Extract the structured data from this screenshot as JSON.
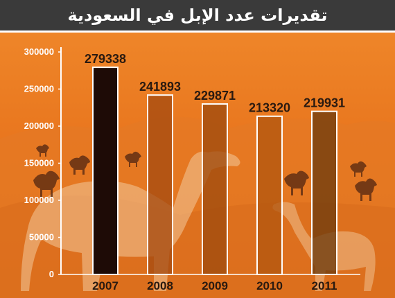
{
  "title": "تقديرات عدد الإبل في السعودية",
  "colors": {
    "background": "#e8741e",
    "title_bar": "#3a3a3a",
    "bar_fills": [
      "#1e0b06",
      "#a34a10",
      "#9c4a0e",
      "#b0560f",
      "#6a3a0e"
    ],
    "bar_stroke": "#ffffff"
  },
  "chart_data": {
    "type": "bar",
    "categories": [
      "2007",
      "2008",
      "2009",
      "2010",
      "2011"
    ],
    "values": [
      279338,
      241893,
      229871,
      213320,
      219931
    ],
    "data_labels": [
      "279338",
      "241893",
      "229871",
      "213320",
      "219931"
    ],
    "title": "تقديرات عدد الإبل في السعودية",
    "ylim": [
      0,
      300000
    ],
    "yticks": [
      0,
      50000,
      100000,
      150000,
      200000,
      250000,
      300000
    ],
    "ytick_labels": [
      "0",
      "50000",
      "100000",
      "150000",
      "200000",
      "250000",
      "300000"
    ],
    "grid": false,
    "legend": "none"
  }
}
